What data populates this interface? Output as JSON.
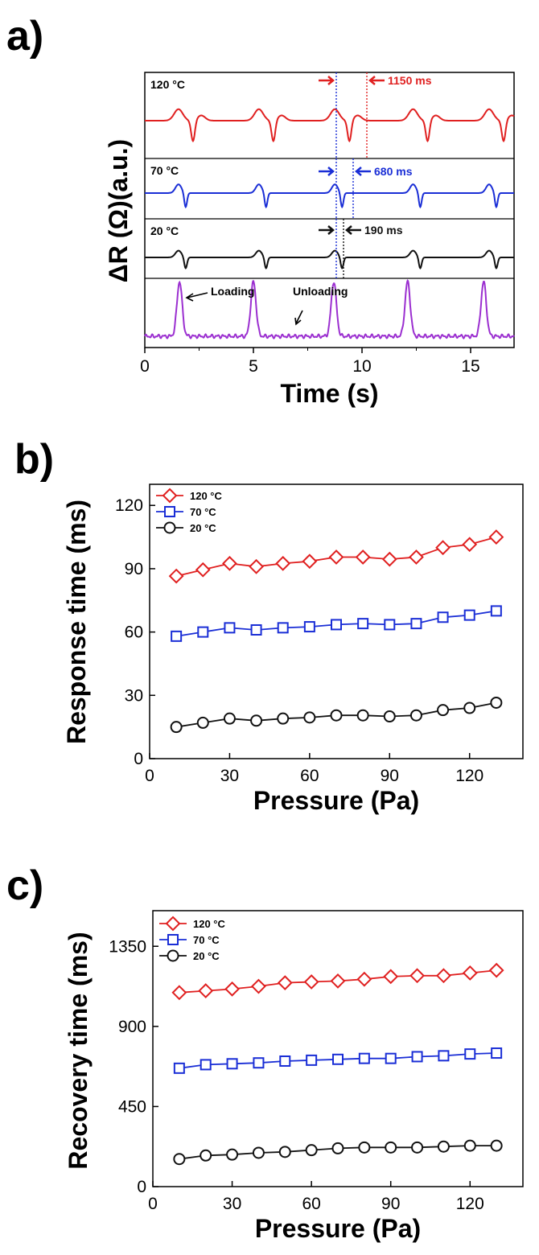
{
  "colors": {
    "red": "#e02020",
    "blue": "#1a2ed6",
    "black": "#111111",
    "purple": "#9b2fd0"
  },
  "chart_data": [
    {
      "panel": "a)",
      "type": "line",
      "xlabel": "Time (s)",
      "ylabel": "ΔR (Ω)(a.u.)",
      "xlim": [
        0,
        17
      ],
      "xticks": [
        "0",
        "5",
        "10",
        "15"
      ],
      "legend": "none",
      "traces": [
        {
          "label": "120 °C",
          "color": "red",
          "annotation": "1150 ms",
          "peaks": [
            1.6,
            5.3,
            8.8,
            12.4,
            15.9
          ]
        },
        {
          "label": "70 °C",
          "color": "blue",
          "annotation": "680 ms",
          "peaks": [
            1.6,
            5.3,
            8.8,
            12.4,
            15.9
          ]
        },
        {
          "label": "20 °C",
          "color": "black",
          "annotation": "190 ms",
          "peaks": [
            1.6,
            5.3,
            8.8,
            12.4,
            15.9
          ]
        },
        {
          "label": "",
          "color": "purple",
          "annotation": "",
          "peaks": [
            1.6,
            5.0,
            8.7,
            12.1,
            15.6
          ]
        }
      ],
      "annotations": [
        "Loading",
        "Unloading"
      ]
    },
    {
      "panel": "b)",
      "type": "line",
      "xlabel": "Pressure (Pa)",
      "ylabel": "Response time (ms)",
      "xlim": [
        0,
        140
      ],
      "ylim": [
        0,
        130
      ],
      "xticks": [
        "0",
        "30",
        "60",
        "90",
        "120"
      ],
      "yticks": [
        "0",
        "30",
        "60",
        "90",
        "120"
      ],
      "legend": "top-left",
      "x": [
        10,
        20,
        30,
        40,
        50,
        60,
        70,
        80,
        90,
        100,
        110,
        120,
        130
      ],
      "series": [
        {
          "name": "120 °C",
          "marker": "diamond",
          "color": "red",
          "values": [
            86.5,
            89.5,
            92.5,
            91,
            92.5,
            93.5,
            95.5,
            95.5,
            94.5,
            95.5,
            100,
            101.5,
            105
          ]
        },
        {
          "name": "70 °C",
          "marker": "square",
          "color": "blue",
          "values": [
            58,
            60,
            62,
            61,
            62,
            62.5,
            63.5,
            64,
            63.5,
            64,
            67,
            68,
            70
          ]
        },
        {
          "name": "20 °C",
          "marker": "circle",
          "color": "black",
          "values": [
            15,
            17,
            19,
            18,
            19,
            19.5,
            20.5,
            20.5,
            20,
            20.5,
            23,
            24,
            26.5
          ]
        }
      ]
    },
    {
      "panel": "c)",
      "type": "line",
      "xlabel": "Pressure (Pa)",
      "ylabel": "Recovery time (ms)",
      "xlim": [
        0,
        140
      ],
      "ylim": [
        0,
        1550
      ],
      "xticks": [
        "0",
        "30",
        "60",
        "90",
        "120"
      ],
      "yticks": [
        "0",
        "450",
        "900",
        "1350"
      ],
      "legend": "top-left",
      "x": [
        10,
        20,
        30,
        40,
        50,
        60,
        70,
        80,
        90,
        100,
        110,
        120,
        130
      ],
      "series": [
        {
          "name": "120 °C",
          "marker": "diamond",
          "color": "red",
          "values": [
            1090,
            1100,
            1110,
            1125,
            1145,
            1150,
            1155,
            1165,
            1180,
            1185,
            1185,
            1200,
            1215
          ]
        },
        {
          "name": "70 °C",
          "marker": "square",
          "color": "blue",
          "values": [
            665,
            685,
            690,
            695,
            705,
            710,
            715,
            720,
            720,
            730,
            735,
            745,
            750
          ]
        },
        {
          "name": "20 °C",
          "marker": "circle",
          "color": "black",
          "values": [
            155,
            175,
            180,
            190,
            195,
            205,
            215,
            220,
            220,
            220,
            225,
            230,
            230
          ]
        }
      ]
    }
  ]
}
